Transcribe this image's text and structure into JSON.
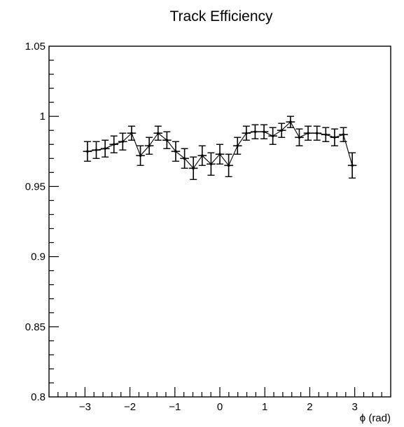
{
  "chart_data": {
    "type": "scatter",
    "title": "Track Efficiency",
    "xlabel": "ϕ (rad)",
    "ylabel": "",
    "xlim": [
      -3.8,
      3.8
    ],
    "ylim": [
      0.8,
      1.05
    ],
    "x_ticks": [
      -3,
      -2,
      -1,
      0,
      1,
      2,
      3
    ],
    "x_tick_labels": [
      "−3",
      "−2",
      "−1",
      "0",
      "1",
      "2",
      "3"
    ],
    "y_ticks": [
      0.8,
      0.85,
      0.9,
      0.95,
      1.0,
      1.05
    ],
    "y_tick_labels": [
      "0.8",
      "0.85",
      "0.9",
      "0.95",
      "1",
      "1.05"
    ],
    "grid": false,
    "legend": "none",
    "connect_points": true,
    "series": [
      {
        "x": [
          -2.945,
          -2.749,
          -2.552,
          -2.356,
          -2.16,
          -1.963,
          -1.767,
          -1.571,
          -1.374,
          -1.178,
          -0.982,
          -0.785,
          -0.589,
          -0.393,
          -0.196,
          0.0,
          0.196,
          0.393,
          0.589,
          0.785,
          0.982,
          1.178,
          1.374,
          1.571,
          1.767,
          1.963,
          2.16,
          2.356,
          2.552,
          2.749,
          2.945
        ],
        "x_err": [
          0.098,
          0.098,
          0.098,
          0.098,
          0.098,
          0.098,
          0.098,
          0.098,
          0.098,
          0.098,
          0.098,
          0.098,
          0.098,
          0.098,
          0.098,
          0.098,
          0.098,
          0.098,
          0.098,
          0.098,
          0.098,
          0.098,
          0.098,
          0.098,
          0.098,
          0.098,
          0.098,
          0.098,
          0.098,
          0.098,
          0.098
        ],
        "y": [
          0.975,
          0.976,
          0.977,
          0.98,
          0.982,
          0.988,
          0.972,
          0.979,
          0.988,
          0.983,
          0.975,
          0.97,
          0.963,
          0.972,
          0.966,
          0.973,
          0.965,
          0.979,
          0.988,
          0.989,
          0.989,
          0.986,
          0.99,
          0.996,
          0.985,
          0.988,
          0.988,
          0.987,
          0.985,
          0.987,
          0.965
        ],
        "y_err": [
          0.007,
          0.006,
          0.006,
          0.006,
          0.006,
          0.005,
          0.007,
          0.006,
          0.005,
          0.006,
          0.007,
          0.007,
          0.008,
          0.007,
          0.008,
          0.007,
          0.008,
          0.006,
          0.005,
          0.005,
          0.005,
          0.006,
          0.005,
          0.004,
          0.006,
          0.005,
          0.005,
          0.005,
          0.006,
          0.005,
          0.009
        ]
      }
    ]
  }
}
